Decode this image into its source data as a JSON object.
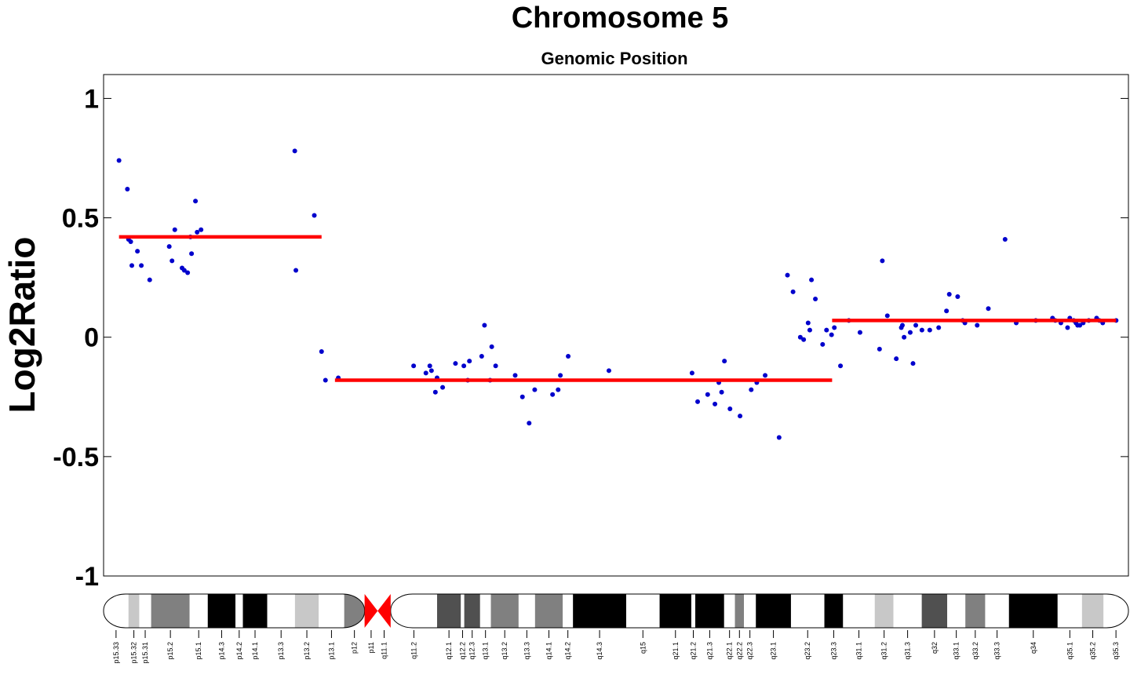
{
  "chart_data": {
    "type": "scatter",
    "title": "Chromosome 5",
    "subtitle": "Genomic Position",
    "xlabel": "",
    "ylabel": "Log2Ratio",
    "ylim": [
      -1,
      1.1
    ],
    "y_ticks": [
      1,
      0.5,
      0,
      -0.5,
      -1
    ],
    "y_tick_labels": [
      "1",
      "0.5",
      "0",
      "-0.5",
      "-1"
    ],
    "x_unit": "Mb",
    "xlim": [
      0,
      181
    ],
    "grid": false,
    "legend": "none",
    "colors": {
      "points": "#0000cc",
      "segments": "#ff0000",
      "centromere": "#ff0000",
      "band_gneg": "#ffffff",
      "band_gpos25": "#c8c8c8",
      "band_gpos50": "#808080",
      "band_gpos75": "#505050",
      "band_gpos100": "#000000"
    },
    "series": [
      {
        "kind": "points",
        "x": [
          1.5,
          3.0,
          3.2,
          3.6,
          3.8,
          4.8,
          5.5,
          7.0,
          10.5,
          11.0,
          11.5,
          12.8,
          13.2,
          13.8,
          14.3,
          14.5,
          15.2,
          15.5,
          16.2,
          33.0,
          33.2,
          36.5,
          37.8,
          38.5,
          40.8,
          54.3,
          56.5,
          57.2,
          57.5,
          58.2,
          58.5,
          59.5,
          61.8,
          63.3,
          64.0,
          64.3,
          66.5,
          67.0,
          68.0,
          68.3,
          69.0,
          72.5,
          73.8,
          75.0,
          76.0,
          79.2,
          80.2,
          80.6,
          82.0,
          89.3,
          104.2,
          105.2,
          107.0,
          108.3,
          109.0,
          109.5,
          110.0,
          111.0,
          112.8,
          114.8,
          115.8,
          117.3,
          119.8,
          121.3,
          122.3,
          123.6,
          124.2,
          125.0,
          125.3,
          125.6,
          126.3,
          127.6,
          128.3,
          129.2,
          129.7,
          130.8,
          132.3,
          134.3,
          137.8,
          138.3,
          139.2,
          140.8,
          141.7,
          141.9,
          142.2,
          143.3,
          143.8,
          144.3,
          145.4,
          146.8,
          148.4,
          149.8,
          150.3,
          151.8,
          152.7,
          153.1,
          155.3,
          157.3,
          160.3,
          162.3,
          165.8,
          168.8,
          169.3,
          170.3,
          171.5,
          171.9,
          172.6,
          173.0,
          173.3,
          173.7,
          174.3,
          175.3,
          176.7,
          177.2,
          177.8,
          180.2
        ],
        "y": [
          0.74,
          0.62,
          0.41,
          0.4,
          0.3,
          0.36,
          0.3,
          0.24,
          0.38,
          0.32,
          0.45,
          0.29,
          0.28,
          0.27,
          0.42,
          0.35,
          0.57,
          0.44,
          0.45,
          0.78,
          0.28,
          0.51,
          -0.06,
          -0.18,
          -0.17,
          -0.12,
          -0.15,
          -0.12,
          -0.14,
          -0.23,
          -0.17,
          -0.21,
          -0.11,
          -0.12,
          -0.18,
          -0.1,
          -0.08,
          0.05,
          -0.18,
          -0.04,
          -0.12,
          -0.16,
          -0.25,
          -0.36,
          -0.22,
          -0.24,
          -0.22,
          -0.16,
          -0.08,
          -0.14,
          -0.15,
          -0.27,
          -0.24,
          -0.28,
          -0.19,
          -0.23,
          -0.1,
          -0.3,
          -0.33,
          -0.22,
          -0.19,
          -0.16,
          -0.42,
          0.26,
          0.19,
          0.0,
          -0.01,
          0.06,
          0.03,
          0.24,
          0.16,
          -0.03,
          0.03,
          0.01,
          0.04,
          -0.12,
          0.07,
          0.02,
          -0.05,
          0.32,
          0.09,
          -0.09,
          0.04,
          0.05,
          0.0,
          0.02,
          -0.11,
          0.05,
          0.03,
          0.03,
          0.04,
          0.11,
          0.18,
          0.17,
          0.07,
          0.06,
          0.05,
          0.12,
          0.41,
          0.06,
          0.07,
          0.08,
          0.07,
          0.06,
          0.04,
          0.08,
          0.07,
          0.06,
          0.05,
          0.05,
          0.06,
          0.07,
          0.08,
          0.07,
          0.06,
          0.07
        ]
      },
      {
        "kind": "segments",
        "segments": [
          {
            "x0": 1.5,
            "x1": 37.8,
            "y": 0.42
          },
          {
            "x0": 40.2,
            "x1": 129.3,
            "y": -0.18
          },
          {
            "x0": 129.3,
            "x1": 180.2,
            "y": 0.07
          }
        ]
      }
    ],
    "ideogram": {
      "bands": [
        {
          "name": "p15.33",
          "start": 0,
          "end": 4.4,
          "stain": "gneg"
        },
        {
          "name": "p15.32",
          "start": 4.4,
          "end": 6.3,
          "stain": "gpos25"
        },
        {
          "name": "p15.31",
          "start": 6.3,
          "end": 8.4,
          "stain": "gneg"
        },
        {
          "name": "p15.2",
          "start": 8.4,
          "end": 15.2,
          "stain": "gpos50"
        },
        {
          "name": "p15.1",
          "start": 15.2,
          "end": 18.4,
          "stain": "gneg"
        },
        {
          "name": "p14.3",
          "start": 18.4,
          "end": 23.3,
          "stain": "gpos100"
        },
        {
          "name": "p14.2",
          "start": 23.3,
          "end": 24.6,
          "stain": "gneg"
        },
        {
          "name": "p14.1",
          "start": 24.6,
          "end": 28.9,
          "stain": "gpos100"
        },
        {
          "name": "p13.3",
          "start": 28.9,
          "end": 33.8,
          "stain": "gneg"
        },
        {
          "name": "p13.2",
          "start": 33.8,
          "end": 38.0,
          "stain": "gpos25"
        },
        {
          "name": "p13.1",
          "start": 38.0,
          "end": 42.5,
          "stain": "gneg"
        },
        {
          "name": "p12",
          "start": 42.5,
          "end": 46.1,
          "stain": "gpos50"
        },
        {
          "name": "p11",
          "start": 46.1,
          "end": 48.4,
          "stain": "acen"
        },
        {
          "name": "q11.1",
          "start": 48.4,
          "end": 50.7,
          "stain": "acen"
        },
        {
          "name": "q11.2",
          "start": 50.7,
          "end": 58.9,
          "stain": "gneg"
        },
        {
          "name": "q12.1",
          "start": 58.9,
          "end": 63.1,
          "stain": "gpos75"
        },
        {
          "name": "q12.2",
          "start": 63.1,
          "end": 63.7,
          "stain": "gneg"
        },
        {
          "name": "q12.3",
          "start": 63.7,
          "end": 66.5,
          "stain": "gpos75"
        },
        {
          "name": "q13.1",
          "start": 66.5,
          "end": 68.4,
          "stain": "gneg"
        },
        {
          "name": "q13.2",
          "start": 68.4,
          "end": 73.3,
          "stain": "gpos50"
        },
        {
          "name": "q13.3",
          "start": 73.3,
          "end": 76.2,
          "stain": "gneg"
        },
        {
          "name": "q14.1",
          "start": 76.2,
          "end": 81.1,
          "stain": "gpos50"
        },
        {
          "name": "q14.2",
          "start": 81.1,
          "end": 82.9,
          "stain": "gneg"
        },
        {
          "name": "q14.3",
          "start": 82.9,
          "end": 92.3,
          "stain": "gpos100"
        },
        {
          "name": "q15",
          "start": 92.3,
          "end": 98.2,
          "stain": "gneg"
        },
        {
          "name": "q21.1",
          "start": 98.2,
          "end": 103.8,
          "stain": "gpos100"
        },
        {
          "name": "q21.2",
          "start": 103.8,
          "end": 104.5,
          "stain": "gneg"
        },
        {
          "name": "q21.3",
          "start": 104.5,
          "end": 109.6,
          "stain": "gpos100"
        },
        {
          "name": "q22.1",
          "start": 109.6,
          "end": 111.5,
          "stain": "gneg"
        },
        {
          "name": "q22.2",
          "start": 111.5,
          "end": 113.1,
          "stain": "gpos50"
        },
        {
          "name": "q22.3",
          "start": 113.1,
          "end": 115.2,
          "stain": "gneg"
        },
        {
          "name": "q23.1",
          "start": 115.2,
          "end": 121.4,
          "stain": "gpos100"
        },
        {
          "name": "q23.2",
          "start": 121.4,
          "end": 127.3,
          "stain": "gneg"
        },
        {
          "name": "q23.3",
          "start": 127.3,
          "end": 130.6,
          "stain": "gpos100"
        },
        {
          "name": "q31.1",
          "start": 130.6,
          "end": 136.2,
          "stain": "gneg"
        },
        {
          "name": "q31.2",
          "start": 136.2,
          "end": 139.5,
          "stain": "gpos25"
        },
        {
          "name": "q31.3",
          "start": 139.5,
          "end": 144.5,
          "stain": "gneg"
        },
        {
          "name": "q32",
          "start": 144.5,
          "end": 149.0,
          "stain": "gpos75"
        },
        {
          "name": "q33.1",
          "start": 149.0,
          "end": 152.2,
          "stain": "gneg"
        },
        {
          "name": "q33.2",
          "start": 152.2,
          "end": 155.7,
          "stain": "gpos50"
        },
        {
          "name": "q33.3",
          "start": 155.7,
          "end": 159.9,
          "stain": "gneg"
        },
        {
          "name": "q34",
          "start": 159.9,
          "end": 168.5,
          "stain": "gpos100"
        },
        {
          "name": "q35.1",
          "start": 168.5,
          "end": 172.8,
          "stain": "gneg"
        },
        {
          "name": "q35.2",
          "start": 172.8,
          "end": 176.6,
          "stain": "gpos25"
        },
        {
          "name": "q35.3",
          "start": 176.6,
          "end": 181.0,
          "stain": "gneg"
        }
      ]
    }
  }
}
